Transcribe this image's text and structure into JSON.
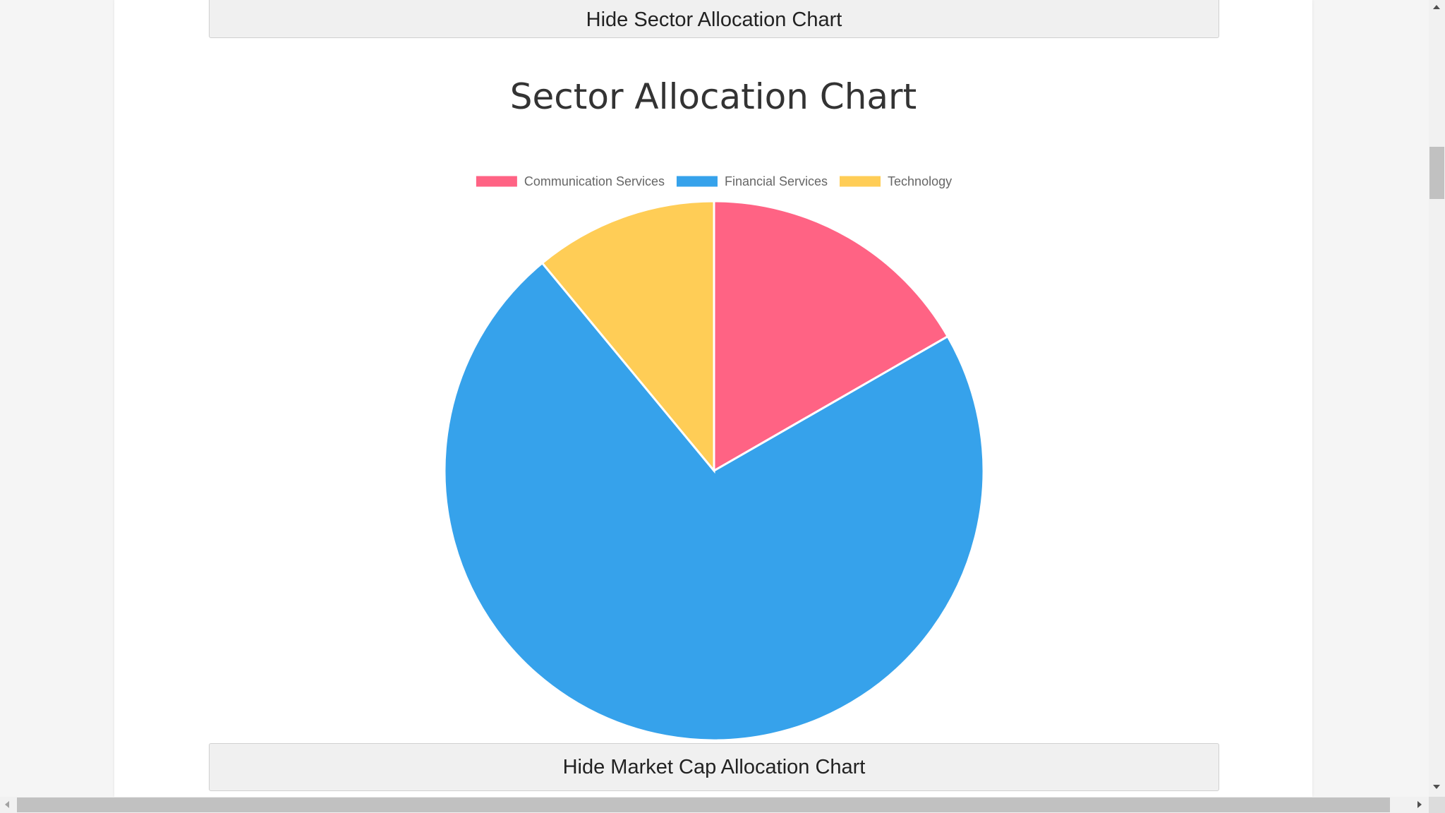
{
  "buttons": {
    "hide_sector": "Hide Sector Allocation Chart",
    "hide_market_cap": "Hide Market Cap Allocation Chart"
  },
  "chart_data": {
    "type": "pie",
    "title": "Sector Allocation Chart",
    "legend_position": "top",
    "categories": [
      "Communication Services",
      "Financial Services",
      "Technology"
    ],
    "values": [
      16.7,
      72.3,
      11.0
    ],
    "colors": [
      "#ff6384",
      "#36a2eb",
      "#ffcd56"
    ]
  }
}
